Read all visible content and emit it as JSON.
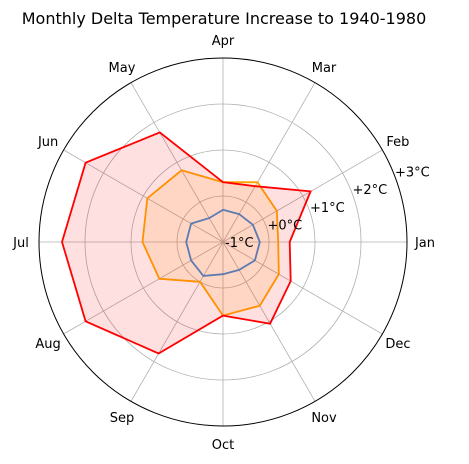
{
  "chart_data": {
    "type": "radar",
    "title": "Monthly Delta Temperature Increase to 1940-1980",
    "categories": [
      "Jan",
      "Feb",
      "Mar",
      "Apr",
      "May",
      "Jun",
      "Jul",
      "Aug",
      "Sep",
      "Oct",
      "Nov",
      "Dec"
    ],
    "radial_ticks": [
      {
        "value": -1,
        "label": "-1°C"
      },
      {
        "value": 0,
        "label": "+0°C"
      },
      {
        "value": 1,
        "label": "+1°C"
      },
      {
        "value": 2,
        "label": "+2°C"
      },
      {
        "value": 3,
        "label": "+3°C"
      }
    ],
    "rlim": [
      -1,
      3
    ],
    "grid": true,
    "series": [
      {
        "color": "#2e8ae6",
        "fill": "none",
        "values": [
          -0.2,
          -0.25,
          -0.3,
          -0.3,
          -0.4,
          -0.2,
          -0.2,
          -0.2,
          -0.15,
          -0.3,
          -0.3,
          -0.2
        ]
      },
      {
        "color": "#ffa500",
        "fill": "#ffa500",
        "values": [
          0.2,
          0.35,
          0.5,
          0.3,
          0.8,
          0.9,
          0.75,
          0.6,
          0.0,
          0.6,
          0.6,
          0.4
        ]
      },
      {
        "color": "#ff0000",
        "fill": "#ff0000",
        "values": [
          0.45,
          1.2,
          0.4,
          0.3,
          1.75,
          2.45,
          2.5,
          2.45,
          1.8,
          0.6,
          1.05,
          0.7
        ]
      }
    ]
  }
}
